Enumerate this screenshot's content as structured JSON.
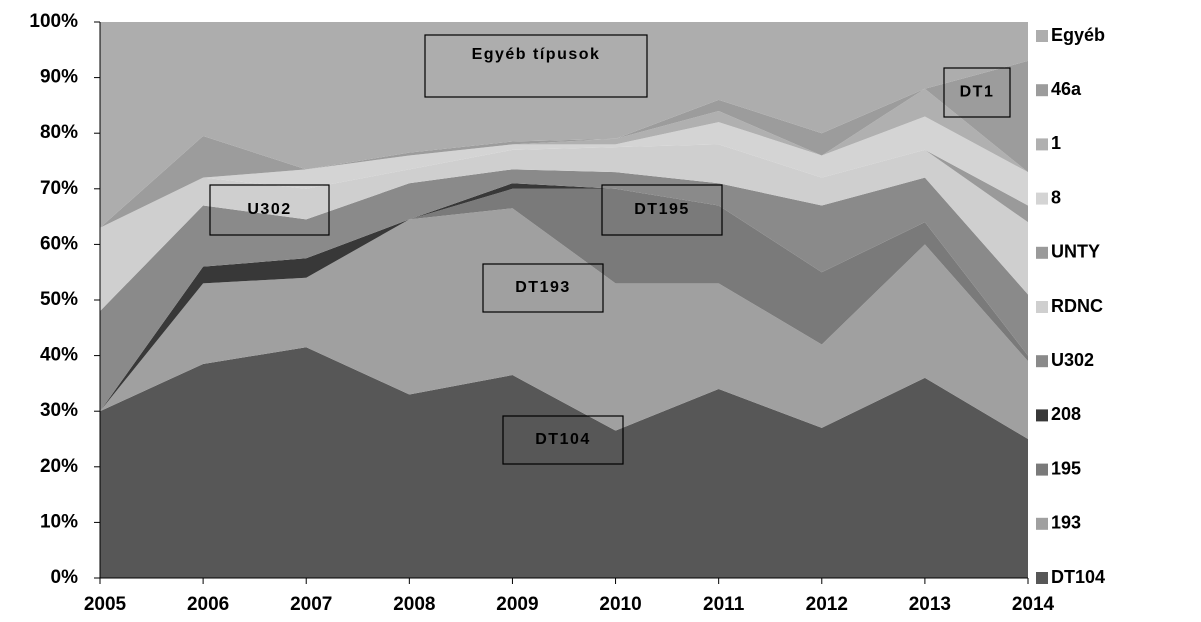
{
  "chart_data": {
    "type": "stacked_area",
    "x": [
      2005,
      2006,
      2007,
      2008,
      2009,
      2010,
      2011,
      2012,
      2013,
      2014
    ],
    "xlim": [
      2005,
      2014
    ],
    "xticks": [
      2005,
      2006,
      2007,
      2008,
      2009,
      2010,
      2011,
      2012,
      2013,
      2014
    ],
    "ylim": [
      0,
      100
    ],
    "yticks": [
      {
        "value": 0,
        "label": "0%"
      },
      {
        "value": 10,
        "label": "10%"
      },
      {
        "value": 20,
        "label": "20%"
      },
      {
        "value": 30,
        "label": "30%"
      },
      {
        "value": 40,
        "label": "40%"
      },
      {
        "value": 50,
        "label": "50%"
      },
      {
        "value": 60,
        "label": "60%"
      },
      {
        "value": 70,
        "label": "70%"
      },
      {
        "value": 80,
        "label": "80%"
      },
      {
        "value": 90,
        "label": "90%"
      },
      {
        "value": 100,
        "label": "100%"
      }
    ],
    "legend": "right",
    "series": [
      {
        "name": "DT104",
        "color": "#575757",
        "values": [
          30,
          38.5,
          41.5,
          33,
          36.5,
          26.5,
          34,
          27,
          36,
          25
        ]
      },
      {
        "name": "193",
        "color": "#a0a0a0",
        "values": [
          0,
          14.5,
          12.5,
          31.5,
          30,
          26.5,
          19,
          15,
          24,
          14
        ]
      },
      {
        "name": "195",
        "color": "#7a7a7a",
        "values": [
          0,
          0,
          0,
          0,
          3.5,
          17,
          14,
          13,
          4,
          1
        ]
      },
      {
        "name": "208",
        "color": "#383838",
        "values": [
          0,
          3,
          3.5,
          0,
          1,
          0,
          0,
          0,
          0,
          0
        ]
      },
      {
        "name": "U302",
        "color": "#8a8a8a",
        "values": [
          18,
          11,
          7,
          6.5,
          2.5,
          3,
          4,
          12,
          8,
          11
        ]
      },
      {
        "name": "RDNC",
        "color": "#cfcfcf",
        "values": [
          15,
          5,
          5.5,
          2.5,
          3.5,
          4.5,
          7,
          5,
          5,
          13
        ]
      },
      {
        "name": "UNTY",
        "color": "#9a9a9a",
        "values": [
          0,
          0,
          0,
          0,
          0,
          0,
          0,
          0,
          0,
          3
        ]
      },
      {
        "name": "8",
        "color": "#d4d4d4",
        "values": [
          0,
          0,
          3.5,
          2.5,
          1,
          0.5,
          4,
          4,
          6,
          6
        ]
      },
      {
        "name": "1",
        "color": "#b0b0b0",
        "values": [
          0,
          0,
          0,
          0,
          0,
          1,
          2,
          0,
          5,
          0
        ]
      },
      {
        "name": "46a",
        "color": "#9c9c9c",
        "values": [
          0,
          7.5,
          0,
          0.5,
          0.5,
          0,
          2,
          4,
          0,
          20
        ]
      },
      {
        "name": "Egyéb",
        "color": "#adadad",
        "values": [
          37,
          20.5,
          26.5,
          23.5,
          21.5,
          21,
          14,
          20,
          12,
          7
        ]
      }
    ],
    "annotations": [
      "Egyéb típusok",
      "DT1",
      "U302",
      "DT195",
      "DT193",
      "DT104"
    ]
  }
}
